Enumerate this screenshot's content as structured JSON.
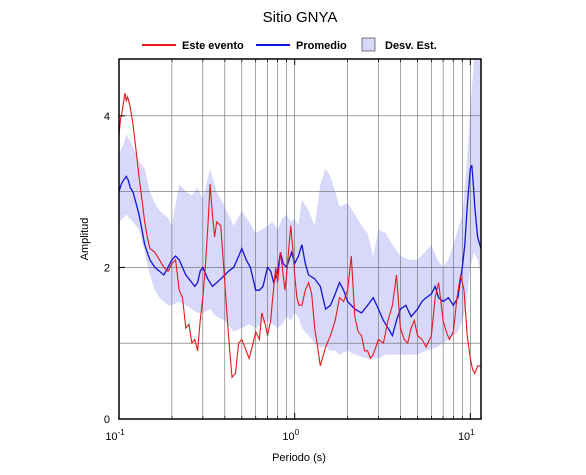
{
  "chart_data": {
    "type": "line",
    "title": "Sitio GNYA",
    "xlabel": "Periodo (s)",
    "ylabel": "Amplitud",
    "x_scale": "log",
    "xlim": [
      0.1,
      11.5
    ],
    "ylim": [
      0,
      4.75
    ],
    "x_ticks": [
      {
        "base": "10",
        "exp": "-1",
        "value": 0.1
      },
      {
        "base": "10",
        "exp": "0",
        "value": 1
      },
      {
        "base": "10",
        "exp": "1",
        "value": 10
      }
    ],
    "y_ticks": [
      {
        "label": "0",
        "value": 0
      },
      {
        "label": "2",
        "value": 2
      },
      {
        "label": "4",
        "value": 4
      }
    ],
    "y_grid": [
      1,
      2,
      3,
      4
    ],
    "x_grid": [
      0.2,
      0.3,
      0.4,
      0.5,
      0.6,
      0.7,
      0.8,
      0.9,
      1,
      2,
      3,
      4,
      5,
      6,
      7,
      8,
      9,
      10
    ],
    "legend": {
      "placement": "top",
      "entries": [
        {
          "label": "Este evento",
          "color": "#e41a1c",
          "kind": "line"
        },
        {
          "label": "Promedio",
          "color": "#1414d8",
          "kind": "line"
        },
        {
          "label": "Desv. Est.",
          "color": "#d8d8fa",
          "kind": "patch"
        }
      ]
    },
    "colors": {
      "event": "#e41a1c",
      "mean": "#1414d8",
      "band": "#d8d8fa",
      "grid": "#6a6a6a"
    },
    "band": {
      "name": "Desv. Est.",
      "x": [
        0.1,
        0.105,
        0.11,
        0.12,
        0.13,
        0.14,
        0.15,
        0.16,
        0.17,
        0.18,
        0.19,
        0.2,
        0.22,
        0.24,
        0.26,
        0.28,
        0.3,
        0.33,
        0.36,
        0.4,
        0.45,
        0.5,
        0.55,
        0.6,
        0.65,
        0.7,
        0.75,
        0.8,
        0.85,
        0.9,
        0.95,
        1.0,
        1.05,
        1.1,
        1.2,
        1.3,
        1.4,
        1.5,
        1.6,
        1.7,
        1.8,
        2.0,
        2.2,
        2.4,
        2.6,
        2.8,
        3.0,
        3.3,
        3.6,
        4.0,
        4.5,
        5.0,
        5.5,
        6.0,
        6.5,
        7.0,
        7.5,
        8.0,
        8.5,
        9.0,
        9.5,
        10.0,
        10.5,
        11.0,
        11.5
      ],
      "upper": [
        3.5,
        3.6,
        3.75,
        3.6,
        3.4,
        3.3,
        3.0,
        2.85,
        2.75,
        2.7,
        2.65,
        2.55,
        3.1,
        3.0,
        2.95,
        3.05,
        2.9,
        3.3,
        3.0,
        2.8,
        2.55,
        2.75,
        2.6,
        2.45,
        2.5,
        2.55,
        2.6,
        2.5,
        2.65,
        2.7,
        2.6,
        2.65,
        2.55,
        2.9,
        2.75,
        2.55,
        3.1,
        3.3,
        3.2,
        3.0,
        2.8,
        2.85,
        2.7,
        2.55,
        2.45,
        2.15,
        2.5,
        2.45,
        2.3,
        2.15,
        2.1,
        2.1,
        2.2,
        2.3,
        2.1,
        2.0,
        2.1,
        2.3,
        2.5,
        2.7,
        3.3,
        4.1,
        4.75,
        4.75,
        4.75
      ],
      "lower": [
        2.6,
        2.65,
        2.7,
        2.6,
        2.5,
        2.2,
        1.9,
        1.7,
        1.6,
        1.55,
        1.5,
        1.5,
        1.55,
        1.5,
        1.45,
        1.4,
        1.4,
        1.45,
        1.35,
        1.3,
        1.15,
        1.2,
        1.25,
        1.2,
        1.25,
        1.3,
        1.25,
        1.2,
        1.25,
        1.35,
        1.3,
        1.4,
        1.35,
        1.2,
        1.1,
        1.0,
        0.95,
        0.95,
        0.9,
        0.9,
        0.85,
        0.9,
        0.85,
        0.82,
        0.8,
        0.8,
        0.8,
        0.85,
        0.85,
        0.85,
        0.85,
        0.85,
        0.9,
        0.92,
        0.95,
        1.0,
        1.05,
        1.1,
        1.15,
        1.3,
        1.5,
        2.0,
        2.2,
        2.1,
        1.9
      ]
    },
    "series": [
      {
        "name": "Este evento",
        "color": "#e41a1c",
        "x": [
          0.1,
          0.102,
          0.105,
          0.108,
          0.11,
          0.112,
          0.115,
          0.12,
          0.125,
          0.13,
          0.135,
          0.14,
          0.145,
          0.15,
          0.16,
          0.17,
          0.18,
          0.19,
          0.2,
          0.21,
          0.22,
          0.23,
          0.24,
          0.25,
          0.26,
          0.27,
          0.28,
          0.29,
          0.3,
          0.31,
          0.32,
          0.33,
          0.34,
          0.35,
          0.36,
          0.38,
          0.4,
          0.42,
          0.44,
          0.46,
          0.48,
          0.5,
          0.52,
          0.55,
          0.58,
          0.6,
          0.63,
          0.65,
          0.68,
          0.7,
          0.73,
          0.75,
          0.78,
          0.8,
          0.83,
          0.85,
          0.88,
          0.9,
          0.93,
          0.95,
          0.98,
          1.0,
          1.03,
          1.06,
          1.1,
          1.15,
          1.2,
          1.25,
          1.3,
          1.35,
          1.4,
          1.5,
          1.6,
          1.7,
          1.8,
          1.9,
          2.0,
          2.1,
          2.2,
          2.3,
          2.4,
          2.5,
          2.6,
          2.7,
          2.8,
          3.0,
          3.2,
          3.4,
          3.6,
          3.8,
          4.0,
          4.2,
          4.4,
          4.6,
          4.8,
          5.0,
          5.3,
          5.6,
          6.0,
          6.3,
          6.6,
          7.0,
          7.3,
          7.6,
          8.0,
          8.4,
          8.8,
          9.2,
          9.6,
          10.0,
          10.3,
          10.6,
          11.0,
          11.5
        ],
        "values": [
          3.75,
          3.95,
          4.1,
          4.3,
          4.2,
          4.25,
          4.15,
          3.9,
          3.55,
          3.2,
          2.9,
          2.6,
          2.4,
          2.25,
          2.2,
          2.1,
          2.0,
          1.95,
          2.05,
          2.1,
          1.7,
          1.6,
          1.2,
          1.25,
          1.0,
          1.05,
          0.9,
          1.3,
          1.6,
          2.0,
          2.5,
          3.1,
          2.7,
          2.4,
          2.6,
          2.55,
          1.8,
          1.1,
          0.55,
          0.6,
          1.0,
          1.05,
          0.95,
          0.8,
          1.0,
          1.15,
          1.05,
          1.4,
          1.25,
          1.1,
          1.3,
          1.6,
          2.0,
          1.8,
          2.2,
          2.0,
          1.7,
          1.9,
          2.3,
          2.55,
          2.2,
          1.9,
          1.6,
          1.5,
          1.5,
          1.7,
          1.8,
          1.65,
          1.2,
          0.95,
          0.7,
          0.95,
          1.1,
          1.3,
          1.6,
          1.55,
          1.7,
          2.15,
          1.35,
          1.15,
          1.1,
          0.9,
          0.9,
          0.8,
          0.85,
          1.05,
          1.0,
          1.3,
          1.5,
          1.9,
          1.2,
          1.05,
          1.0,
          1.2,
          1.3,
          1.1,
          1.05,
          0.95,
          1.1,
          1.6,
          1.8,
          1.3,
          1.15,
          1.05,
          1.15,
          1.6,
          1.9,
          1.7,
          1.1,
          0.8,
          0.65,
          0.6,
          0.7,
          0.7
        ]
      },
      {
        "name": "Promedio",
        "color": "#1414d8",
        "x": [
          0.1,
          0.103,
          0.106,
          0.11,
          0.113,
          0.116,
          0.12,
          0.125,
          0.13,
          0.135,
          0.14,
          0.15,
          0.16,
          0.17,
          0.18,
          0.19,
          0.2,
          0.21,
          0.22,
          0.23,
          0.24,
          0.25,
          0.26,
          0.27,
          0.28,
          0.29,
          0.3,
          0.32,
          0.34,
          0.36,
          0.38,
          0.4,
          0.42,
          0.45,
          0.48,
          0.5,
          0.53,
          0.56,
          0.6,
          0.63,
          0.66,
          0.7,
          0.73,
          0.76,
          0.8,
          0.83,
          0.86,
          0.9,
          0.93,
          0.96,
          1.0,
          1.05,
          1.1,
          1.15,
          1.2,
          1.3,
          1.4,
          1.5,
          1.6,
          1.7,
          1.8,
          1.9,
          2.0,
          2.2,
          2.4,
          2.6,
          2.8,
          3.0,
          3.2,
          3.4,
          3.6,
          3.8,
          4.0,
          4.3,
          4.6,
          5.0,
          5.3,
          5.6,
          6.0,
          6.3,
          6.6,
          7.0,
          7.5,
          8.0,
          8.5,
          9.0,
          9.3,
          9.6,
          10.0,
          10.2,
          10.4,
          10.6,
          11.0,
          11.5
        ],
        "values": [
          3.0,
          3.1,
          3.15,
          3.2,
          3.15,
          3.05,
          3.0,
          2.85,
          2.7,
          2.5,
          2.3,
          2.1,
          2.0,
          1.95,
          1.9,
          2.0,
          2.1,
          2.15,
          2.1,
          2.0,
          1.9,
          1.85,
          1.8,
          1.75,
          1.8,
          1.95,
          2.0,
          1.85,
          1.75,
          1.8,
          1.85,
          1.9,
          1.95,
          2.0,
          2.15,
          2.25,
          2.1,
          2.0,
          1.7,
          1.7,
          1.75,
          2.0,
          1.95,
          1.8,
          1.95,
          2.2,
          2.05,
          2.0,
          2.1,
          2.2,
          2.05,
          2.15,
          2.3,
          2.05,
          1.9,
          1.85,
          1.75,
          1.45,
          1.5,
          1.65,
          1.8,
          1.7,
          1.55,
          1.45,
          1.4,
          1.5,
          1.6,
          1.45,
          1.3,
          1.2,
          1.1,
          1.3,
          1.45,
          1.5,
          1.35,
          1.45,
          1.55,
          1.6,
          1.65,
          1.75,
          1.6,
          1.55,
          1.6,
          1.5,
          1.6,
          2.0,
          2.3,
          2.8,
          3.3,
          3.35,
          3.1,
          2.8,
          2.4,
          2.25
        ]
      }
    ]
  }
}
